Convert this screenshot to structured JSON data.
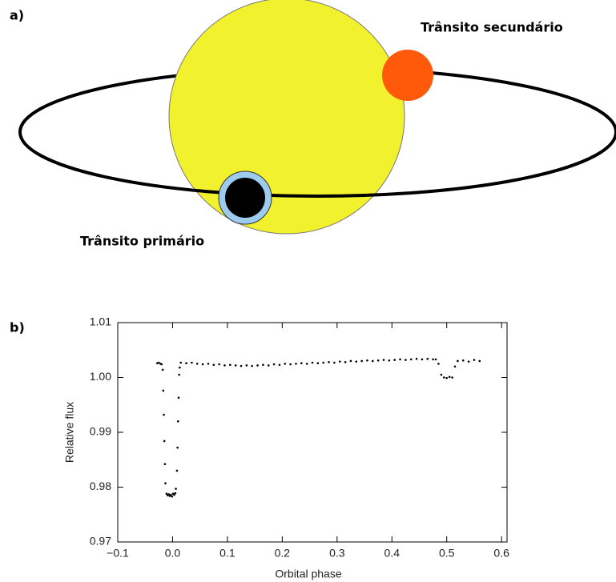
{
  "diagram": {
    "label": "a)",
    "secondary_transit": "Trânsito secundário",
    "primary_transit": "Trânsito primário"
  },
  "chart_data": {
    "type": "scatter",
    "label": "b)",
    "xlabel": "Orbital phase",
    "ylabel": "Relative flux",
    "color": "#000000",
    "xlim": [
      -0.1,
      0.61
    ],
    "ylim": [
      0.97,
      1.01
    ],
    "xticks": [
      {
        "value": -0.1,
        "label": "−0.1"
      },
      {
        "value": 0,
        "label": "0.0"
      },
      0.1,
      0.2,
      0.3,
      0.4,
      0.5,
      0.6
    ],
    "yticks": [
      0.97,
      0.98,
      0.99,
      {
        "value": 1,
        "label": "1.00"
      },
      1.01
    ],
    "x": [
      -0.028,
      -0.025,
      -0.022,
      -0.02,
      -0.018,
      -0.017,
      -0.016,
      -0.015,
      -0.014,
      -0.013,
      -0.011,
      -0.009,
      -0.007,
      -0.005,
      -0.003,
      -0.001,
      0.001,
      0.003,
      0.005,
      0.006,
      0.008,
      0.009,
      0.01,
      0.011,
      0.012,
      0.013,
      0.015,
      0.025,
      0.035,
      0.045,
      0.055,
      0.065,
      0.075,
      0.085,
      0.095,
      0.105,
      0.115,
      0.125,
      0.135,
      0.145,
      0.155,
      0.165,
      0.175,
      0.185,
      0.195,
      0.205,
      0.215,
      0.225,
      0.235,
      0.245,
      0.255,
      0.265,
      0.275,
      0.285,
      0.295,
      0.305,
      0.315,
      0.325,
      0.335,
      0.345,
      0.355,
      0.365,
      0.375,
      0.385,
      0.395,
      0.405,
      0.415,
      0.425,
      0.435,
      0.445,
      0.455,
      0.465,
      0.475,
      0.48,
      0.485,
      0.49,
      0.495,
      0.5,
      0.505,
      0.51,
      0.515,
      0.52,
      0.53,
      0.54,
      0.55,
      0.56
    ],
    "values": [
      1.0026,
      1.0027,
      1.0025,
      1.0024,
      1.0014,
      0.9976,
      0.9932,
      0.9884,
      0.9842,
      0.9807,
      0.9788,
      0.9785,
      0.9787,
      0.9784,
      0.9786,
      0.9783,
      0.9788,
      0.9786,
      0.9789,
      0.9797,
      0.983,
      0.9872,
      0.992,
      0.9963,
      1.0005,
      1.0018,
      1.0027,
      1.0026,
      1.0027,
      1.0025,
      1.0024,
      1.0025,
      1.0023,
      1.0024,
      1.0022,
      1.0023,
      1.0022,
      1.0021,
      1.0022,
      1.0021,
      1.0022,
      1.0023,
      1.0022,
      1.0024,
      1.0023,
      1.0025,
      1.0024,
      1.0025,
      1.0026,
      1.0025,
      1.0027,
      1.0026,
      1.0027,
      1.0028,
      1.0027,
      1.0029,
      1.0028,
      1.003,
      1.0029,
      1.003,
      1.0031,
      1.003,
      1.0031,
      1.0032,
      1.0031,
      1.0032,
      1.0033,
      1.0032,
      1.0033,
      1.0034,
      1.0033,
      1.0034,
      1.0033,
      1.0033,
      1.0025,
      1.0005,
      1.0,
      0.9999,
      1.0001,
      1.0,
      1.002,
      1.003,
      1.0031,
      1.0029,
      1.0032,
      1.003
    ]
  }
}
